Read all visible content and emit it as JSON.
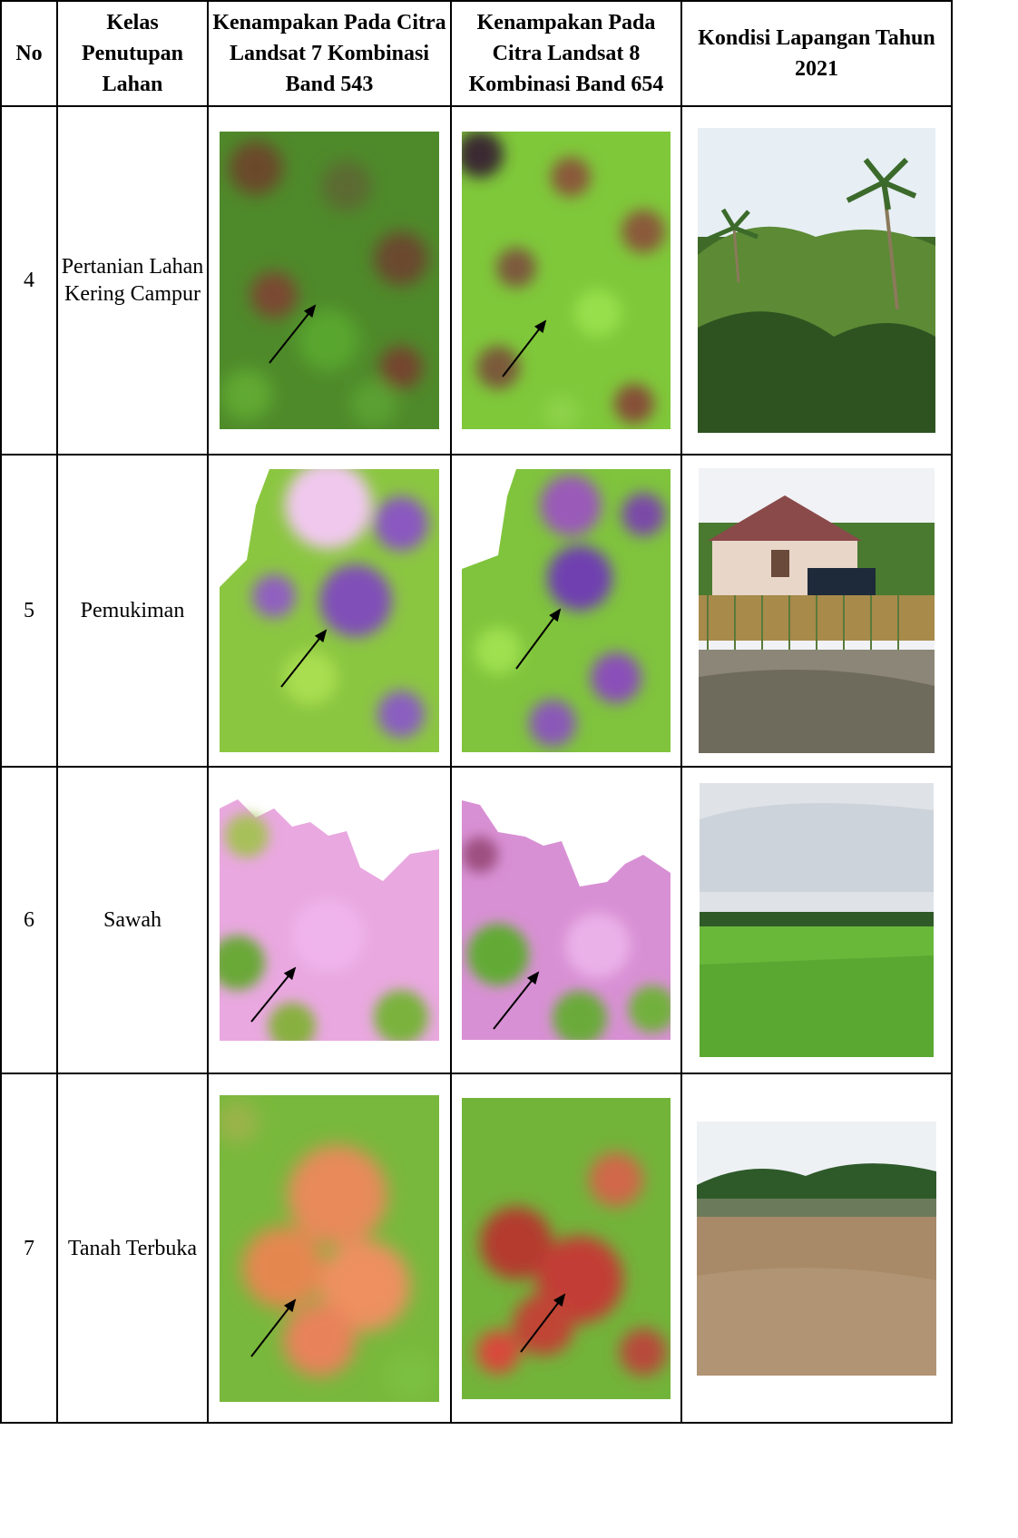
{
  "headers": {
    "no": "No",
    "kelas": "Kelas Penutupan Lahan",
    "l7": "Kenampakan Pada Citra Landsat 7 Kombinasi Band 543",
    "l8": "Kenampakan Pada Citra Landsat 8 Kombinasi Band 654",
    "field": "Kondisi Lapangan Tahun 2021"
  },
  "rows": [
    {
      "no": "4",
      "kelas": "Pertanian Lahan Kering Campur",
      "l7_image": "Landsat 7 band 543 crop: green vegetation with brown patches, arrow",
      "l8_image": "Landsat 8 band 654 crop: bright green mottled with brown, arrow",
      "photo": "field photo: coconut palms and dense shrubs"
    },
    {
      "no": "5",
      "kelas": "Pemukiman",
      "l7_image": "Landsat 7 band 543 crop: purple/pink settlement patch among green, arrow",
      "l8_image": "Landsat 8 band 654 crop: purple settlement patch among green, arrow",
      "photo": "field photo: house with wooden fence and parked truck"
    },
    {
      "no": "6",
      "kelas": "Sawah",
      "l7_image": "Landsat 7 band 543 crop: pink paddy field area, arrow",
      "l8_image": "Landsat 8 band 654 crop: pink paddy field with green edges, arrow",
      "photo": "field photo: green rice field under cloudy sky"
    },
    {
      "no": "7",
      "kelas": "Tanah Terbuka",
      "l7_image": "Landsat 7 band 543 crop: orange bare soil among green, arrow",
      "l8_image": "Landsat 8 band 654 crop: red bare soil among green, arrow",
      "photo": "field photo: open bare ground with trees in distance"
    }
  ]
}
